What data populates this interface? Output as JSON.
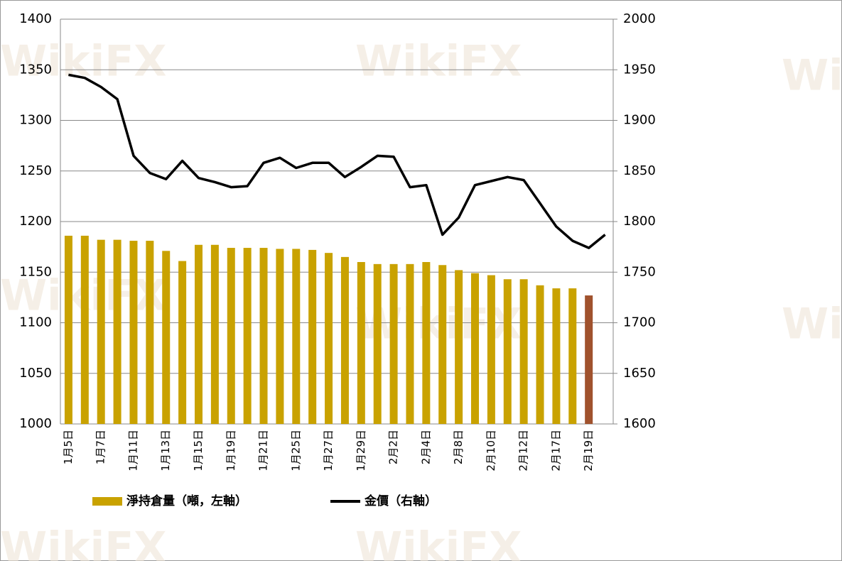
{
  "chart_data": {
    "type": "bar_line",
    "watermark": "WikiFX",
    "categories": [
      "1月5日",
      null,
      "1月7日",
      null,
      "1月11日",
      null,
      "1月13日",
      null,
      "1月15日",
      null,
      "1月19日",
      null,
      "1月21日",
      null,
      "1月25日",
      null,
      "1月27日",
      null,
      "1月29日",
      null,
      "2月2日",
      null,
      "2月4日",
      null,
      "2月8日",
      null,
      "2月10日",
      null,
      "2月12日",
      null,
      "2月17日",
      null,
      "2月19日",
      null
    ],
    "series": [
      {
        "name": "淨持倉量（噸，左軸）",
        "type": "bar",
        "color": "#c9a200",
        "colors": [
          "#c9a200",
          "#c9a200",
          "#c9a200",
          "#c9a200",
          "#c9a200",
          "#c9a200",
          "#c9a200",
          "#c9a200",
          "#c9a200",
          "#c9a200",
          "#c9a200",
          "#c9a200",
          "#c9a200",
          "#c9a200",
          "#c9a200",
          "#c9a200",
          "#c9a200",
          "#c9a200",
          "#c9a200",
          "#c9a200",
          "#c9a200",
          "#c9a200",
          "#c9a200",
          "#c9a200",
          "#c9a200",
          "#c9a200",
          "#c9a200",
          "#c9a200",
          "#c9a200",
          "#c9a200",
          "#c9a200",
          "#c9a200",
          "#a0522d",
          null
        ],
        "values": [
          1186,
          1186,
          1182,
          1182,
          1181,
          1181,
          1171,
          1161,
          1177,
          1177,
          1174,
          1174,
          1174,
          1173,
          1173,
          1172,
          1169,
          1165,
          1160,
          1158,
          1158,
          1158,
          1160,
          1157,
          1152,
          1149,
          1147,
          1143,
          1143,
          1137,
          1134,
          1134,
          1127,
          null
        ]
      },
      {
        "name": "金價（右軸）",
        "type": "line",
        "axis": "y2",
        "color": "#000000",
        "values": [
          1945,
          1942,
          1933,
          1921,
          1865,
          1848,
          1842,
          1860,
          1843,
          1839,
          1834,
          1835,
          1858,
          1863,
          1853,
          1858,
          1858,
          1844,
          1854,
          1865,
          1864,
          1834,
          1836,
          1787,
          1804,
          1836,
          1840,
          1844,
          1841,
          1818,
          1795,
          1781,
          1774,
          1787
        ]
      }
    ],
    "ylim": [
      1000,
      1400
    ],
    "yticks": [
      1000,
      1050,
      1100,
      1150,
      1200,
      1250,
      1300,
      1350,
      1400
    ],
    "y2lim": [
      1600,
      2000
    ],
    "y2ticks": [
      1600,
      1650,
      1700,
      1750,
      1800,
      1850,
      1900,
      1950,
      2000
    ],
    "grid": true
  }
}
